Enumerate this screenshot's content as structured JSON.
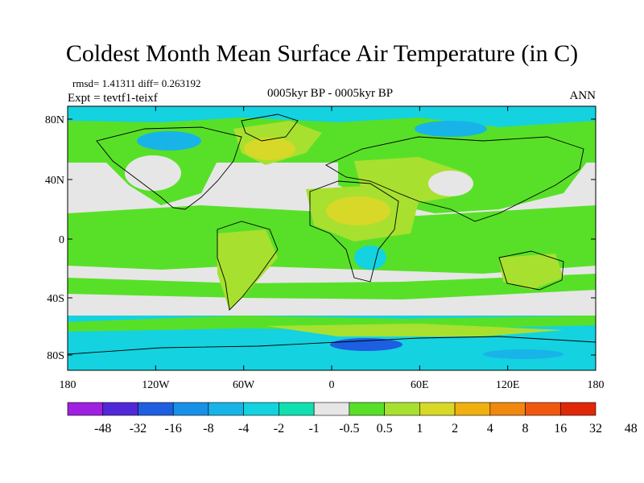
{
  "title": "Coldest Month Mean Surface Air Temperature (in C)",
  "stats": "rmsd= 1.41311 diff= 0.263192",
  "experiment": "Expt = tevtf1-teixf",
  "period": "0005kyr BP - 0005kyr BP",
  "season": "ANN",
  "lat_labels": [
    "80N",
    "40N",
    "0",
    "40S",
    "80S"
  ],
  "lon_labels": [
    "180",
    "120W",
    "60W",
    "0",
    "60E",
    "120E",
    "180"
  ],
  "colorbar": {
    "labels": [
      "-48",
      "-32",
      "-16",
      "-8",
      "-4",
      "-2",
      "-1",
      "-0.5",
      "0.5",
      "1",
      "2",
      "4",
      "8",
      "16",
      "32",
      "48"
    ],
    "colors": [
      "#a020e0",
      "#5028d8",
      "#1e5ee0",
      "#1890e8",
      "#18b4e8",
      "#14d2e0",
      "#10e0b0",
      "#e6e6e6",
      "#58e028",
      "#a8e030",
      "#d8d828",
      "#f0b010",
      "#f08810",
      "#f05810",
      "#e02808"
    ]
  },
  "map_colors": {
    "neutral": "#e6e6e6",
    "warm_light": "#58e028",
    "warm_mid": "#a8e030",
    "warm_strong": "#d8d828",
    "warm_orange": "#f0b010",
    "cool_light": "#14d2e0",
    "cool_mid": "#18b4e8",
    "cool_strong": "#1e5ee0",
    "coast": "#000000"
  }
}
